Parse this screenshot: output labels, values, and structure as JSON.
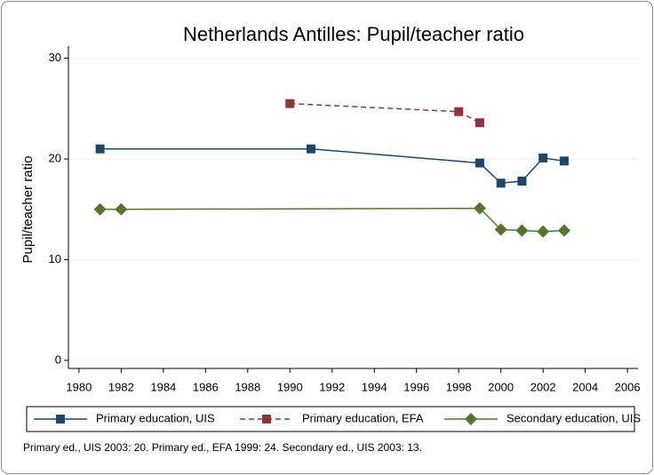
{
  "chart_data": {
    "type": "line",
    "title": "Netherlands Antilles: Pupil/teacher ratio",
    "ylabel": "Pupil/teacher ratio",
    "note": "Primary ed., UIS 2003: 20. Primary ed., EFA 1999: 24. Secondary ed., UIS 2003: 13.",
    "xlim": [
      1979.5,
      2006.5
    ],
    "xticks": [
      1980,
      1982,
      1984,
      1986,
      1988,
      1990,
      1992,
      1994,
      1996,
      1998,
      2000,
      2002,
      2004,
      2006
    ],
    "ylim": [
      -0.8,
      31.2
    ],
    "yticks": [
      0,
      10,
      20,
      30
    ],
    "grid": true,
    "legend": "bottom",
    "series": [
      {
        "name": "Primary education, UIS",
        "color": "#1a476f",
        "marker": "square",
        "dashed": false,
        "x": [
          1981,
          1991,
          1999,
          2000,
          2001,
          2002,
          2003
        ],
        "values": [
          21,
          21,
          19.6,
          17.6,
          17.8,
          20.1,
          19.8
        ]
      },
      {
        "name": "Primary education, EFA",
        "color": "#90353b",
        "marker": "square",
        "dashed": true,
        "x": [
          1990,
          1998,
          1999
        ],
        "values": [
          25.5,
          24.7,
          23.6
        ]
      },
      {
        "name": "Secondary education, UIS",
        "color": "#55752f",
        "marker": "diamond",
        "dashed": false,
        "x": [
          1981,
          1982,
          1999,
          2000,
          2001,
          2002,
          2003
        ],
        "values": [
          15,
          15,
          15.1,
          13,
          12.9,
          12.8,
          12.9
        ]
      }
    ]
  }
}
